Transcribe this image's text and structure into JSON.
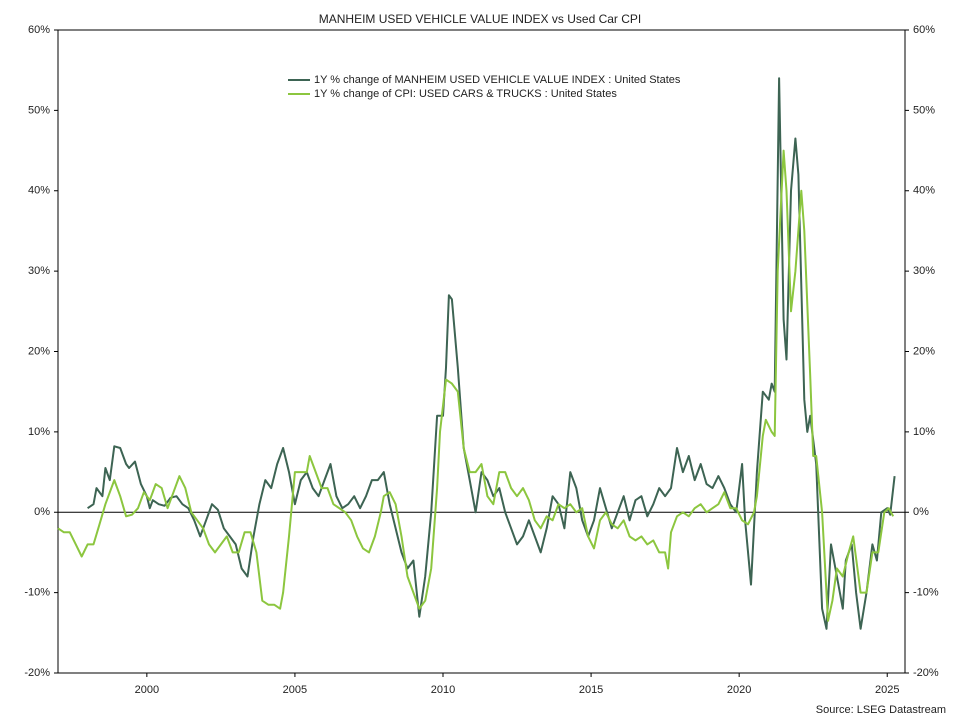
{
  "chart_data": {
    "type": "line",
    "title": "MANHEIM USED VEHICLE VALUE INDEX vs Used Car CPI",
    "source": "Source: LSEG Datastream",
    "xlim": [
      1997,
      2025.6
    ],
    "xticks": [
      2000,
      2005,
      2010,
      2015,
      2020,
      2025
    ],
    "ylim": [
      -20,
      60
    ],
    "yticks": [
      {
        "value": -20,
        "label": "-20%"
      },
      {
        "value": -10,
        "label": "-10%"
      },
      {
        "value": 0,
        "label": "0%"
      },
      {
        "value": 10,
        "label": "10%"
      },
      {
        "value": 20,
        "label": "20%"
      },
      {
        "value": 30,
        "label": "30%"
      },
      {
        "value": 40,
        "label": "40%"
      },
      {
        "value": 50,
        "label": "50%"
      },
      {
        "value": 60,
        "label": "60%"
      }
    ],
    "zero_line": true,
    "series": [
      {
        "name": "1Y % change of MANHEIM USED VEHICLE VALUE INDEX : United States",
        "color": "#3d6453",
        "x": [
          1998.0,
          1998.2,
          1998.3,
          1998.5,
          1998.6,
          1998.75,
          1998.9,
          1999.1,
          1999.3,
          1999.4,
          1999.6,
          1999.8,
          2000.0,
          2000.1,
          2000.2,
          2000.4,
          2000.6,
          2000.8,
          2001.0,
          2001.2,
          2001.4,
          2001.6,
          2001.8,
          2002.0,
          2002.2,
          2002.4,
          2002.6,
          2002.8,
          2003.0,
          2003.2,
          2003.4,
          2003.6,
          2003.8,
          2004.0,
          2004.2,
          2004.4,
          2004.6,
          2004.8,
          2005.0,
          2005.2,
          2005.4,
          2005.6,
          2005.8,
          2006.0,
          2006.2,
          2006.4,
          2006.6,
          2006.8,
          2007.0,
          2007.2,
          2007.4,
          2007.6,
          2007.8,
          2008.0,
          2008.2,
          2008.4,
          2008.6,
          2008.8,
          2009.0,
          2009.2,
          2009.4,
          2009.6,
          2009.8,
          2010.0,
          2010.1,
          2010.2,
          2010.3,
          2010.5,
          2010.7,
          2010.9,
          2011.1,
          2011.3,
          2011.5,
          2011.7,
          2011.9,
          2012.1,
          2012.3,
          2012.5,
          2012.7,
          2012.9,
          2013.1,
          2013.3,
          2013.5,
          2013.7,
          2013.9,
          2014.1,
          2014.3,
          2014.5,
          2014.7,
          2014.9,
          2015.1,
          2015.3,
          2015.5,
          2015.7,
          2015.9,
          2016.1,
          2016.3,
          2016.5,
          2016.7,
          2016.9,
          2017.1,
          2017.3,
          2017.5,
          2017.7,
          2017.9,
          2018.1,
          2018.3,
          2018.5,
          2018.7,
          2018.9,
          2019.1,
          2019.3,
          2019.5,
          2019.7,
          2019.9,
          2020.1,
          2020.2,
          2020.4,
          2020.6,
          2020.8,
          2021.0,
          2021.1,
          2021.2,
          2021.35,
          2021.5,
          2021.6,
          2021.75,
          2021.9,
          2022.0,
          2022.2,
          2022.3,
          2022.4,
          2022.6,
          2022.8,
          2022.95,
          2023.1,
          2023.3,
          2023.5,
          2023.6,
          2023.8,
          2023.95,
          2024.1,
          2024.3,
          2024.5,
          2024.65,
          2024.8,
          2025.0,
          2025.1,
          2025.25
        ],
        "values": [
          0.5,
          1,
          3,
          2,
          5.5,
          4,
          8.2,
          8,
          6,
          5.5,
          6.3,
          3.5,
          2,
          0.5,
          1.5,
          1,
          0.8,
          1.8,
          2,
          1,
          0.5,
          -1,
          -3,
          -1,
          1,
          0.3,
          -2,
          -3,
          -4,
          -7,
          -8,
          -3,
          1,
          4,
          3,
          6,
          8,
          5,
          1,
          4,
          5,
          3,
          2,
          4,
          6,
          2,
          0.5,
          1,
          2,
          0.5,
          2,
          4,
          4,
          5,
          1,
          -2,
          -5,
          -7,
          -6,
          -13,
          -8,
          0,
          12,
          12,
          18,
          27,
          26.5,
          18,
          8,
          4,
          0,
          5,
          4,
          2,
          3,
          0,
          -2,
          -4,
          -3,
          -1,
          -3,
          -5,
          -2,
          2,
          1,
          -2,
          5,
          3,
          -1,
          -3,
          -1,
          3,
          0.5,
          -2,
          0,
          2,
          -1,
          1.5,
          2,
          -0.5,
          1,
          3,
          2,
          3,
          8,
          5,
          7,
          4,
          6,
          3.5,
          3,
          4.5,
          3,
          1,
          0,
          6,
          -1,
          -9,
          5,
          15,
          14,
          16,
          15,
          54,
          24,
          19,
          40,
          46.5,
          42,
          14,
          10,
          12,
          6,
          -12,
          -14.5,
          -4,
          -8,
          -12,
          -6,
          -4,
          -10,
          -14.5,
          -10,
          -4,
          -6,
          0,
          0.5,
          -0.3,
          4.5
        ]
      },
      {
        "name": "1Y % change of CPI: USED CARS & TRUCKS : United States",
        "color": "#8cc63f",
        "x": [
          1997.0,
          1997.2,
          1997.4,
          1997.6,
          1997.8,
          1998.0,
          1998.2,
          1998.4,
          1998.6,
          1998.9,
          1999.1,
          1999.3,
          1999.5,
          1999.7,
          1999.9,
          2000.1,
          2000.3,
          2000.5,
          2000.7,
          2000.9,
          2001.1,
          2001.3,
          2001.5,
          2001.7,
          2001.9,
          2002.1,
          2002.3,
          2002.5,
          2002.7,
          2002.9,
          2003.1,
          2003.3,
          2003.5,
          2003.7,
          2003.9,
          2004.1,
          2004.3,
          2004.5,
          2004.6,
          2004.8,
          2005.0,
          2005.2,
          2005.4,
          2005.5,
          2005.7,
          2005.9,
          2006.1,
          2006.3,
          2006.5,
          2006.7,
          2006.9,
          2007.1,
          2007.3,
          2007.5,
          2007.7,
          2007.9,
          2008.0,
          2008.2,
          2008.4,
          2008.6,
          2008.8,
          2009.0,
          2009.2,
          2009.4,
          2009.6,
          2009.8,
          2009.9,
          2010.1,
          2010.3,
          2010.5,
          2010.7,
          2010.9,
          2011.1,
          2011.3,
          2011.5,
          2011.7,
          2011.9,
          2012.1,
          2012.3,
          2012.5,
          2012.7,
          2012.9,
          2013.1,
          2013.3,
          2013.5,
          2013.7,
          2013.9,
          2014.1,
          2014.3,
          2014.5,
          2014.7,
          2014.9,
          2015.1,
          2015.3,
          2015.5,
          2015.7,
          2015.9,
          2016.1,
          2016.3,
          2016.5,
          2016.7,
          2016.9,
          2017.1,
          2017.3,
          2017.5,
          2017.6,
          2017.7,
          2017.9,
          2018.1,
          2018.3,
          2018.5,
          2018.7,
          2018.9,
          2019.1,
          2019.3,
          2019.5,
          2019.7,
          2019.9,
          2020.1,
          2020.3,
          2020.5,
          2020.6,
          2020.8,
          2020.9,
          2021.1,
          2021.2,
          2021.3,
          2021.5,
          2021.6,
          2021.75,
          2021.9,
          2022.1,
          2022.2,
          2022.4,
          2022.5,
          2022.6,
          2022.8,
          2023.0,
          2023.15,
          2023.3,
          2023.5,
          2023.7,
          2023.85,
          2024.1,
          2024.3,
          2024.5,
          2024.7,
          2024.9,
          2025.05,
          2025.2
        ],
        "values": [
          -2,
          -2.5,
          -2.5,
          -4,
          -5.5,
          -4,
          -4,
          -1.5,
          1,
          4,
          2,
          -0.5,
          -0.3,
          0.5,
          2.5,
          1.5,
          3.5,
          3,
          0.5,
          2.5,
          4.5,
          3,
          0,
          -1,
          -2,
          -4,
          -5,
          -4,
          -3,
          -5,
          -5,
          -2.5,
          -2.5,
          -5,
          -11,
          -11.5,
          -11.5,
          -12,
          -10,
          -3,
          5,
          5,
          5,
          7,
          5,
          3,
          3,
          1,
          0.5,
          0,
          -1,
          -3,
          -4.5,
          -5,
          -3,
          0,
          2,
          2.5,
          1,
          -3,
          -8,
          -10,
          -12,
          -11,
          -7,
          3,
          10,
          16.5,
          16,
          15,
          8,
          5,
          5,
          6,
          2,
          1,
          5,
          5,
          3,
          2,
          3,
          1.5,
          -1,
          -2,
          -0.5,
          -1,
          1,
          0.5,
          1,
          0,
          0.5,
          -3,
          -4.5,
          -1,
          0,
          -1.5,
          -2,
          -1,
          -3,
          -3.5,
          -3,
          -4,
          -3.5,
          -5,
          -5,
          -7,
          -2.5,
          -0.5,
          0,
          -0.5,
          0.5,
          1,
          0,
          0.5,
          1,
          2.5,
          0.5,
          0.5,
          -1,
          -1.5,
          0,
          2,
          9.5,
          11.5,
          10,
          9.5,
          30,
          45,
          40,
          25,
          30,
          40,
          35,
          17,
          7,
          7,
          0,
          -13.5,
          -11,
          -7,
          -8,
          -5,
          -3,
          -10,
          -10,
          -5,
          -5,
          0,
          0.5,
          -0.5
        ]
      }
    ]
  }
}
